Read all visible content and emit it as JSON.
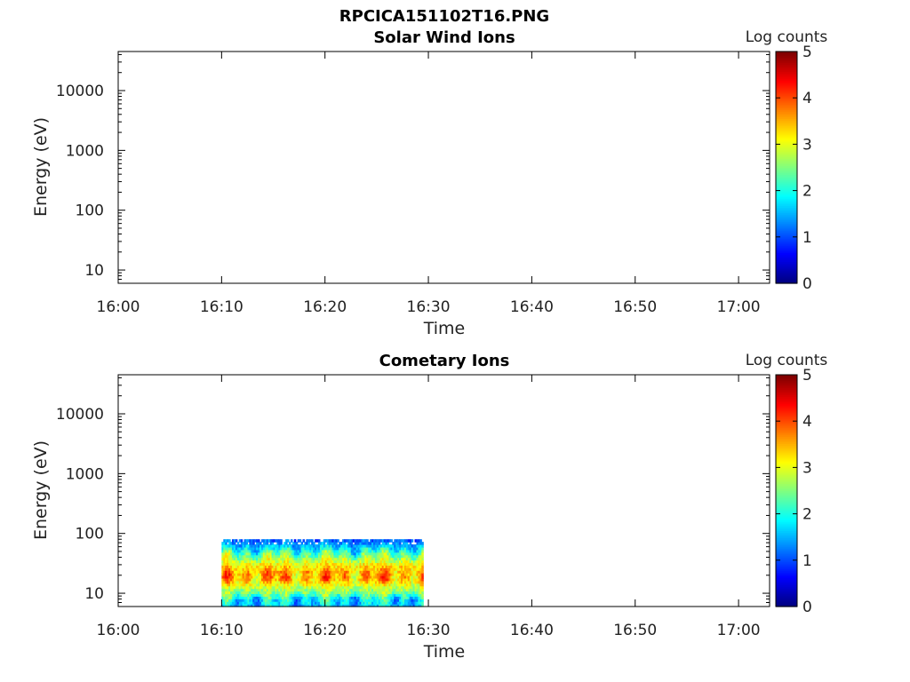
{
  "figure": {
    "title": "RPCICA151102T16.PNG"
  },
  "chart_data": [
    {
      "type": "heatmap",
      "title": "Solar Wind Ions",
      "xlabel": "Time",
      "ylabel": "Energy (eV)",
      "x_ticks": [
        "16:00",
        "16:10",
        "16:20",
        "16:30",
        "16:40",
        "16:50",
        "17:00"
      ],
      "xlim": [
        "16:00",
        "17:03"
      ],
      "y_scale": "log",
      "y_ticks": [
        10,
        100,
        1000,
        10000
      ],
      "ylim": [
        6,
        45000
      ],
      "colorbar": {
        "label": "Log counts",
        "ticks": [
          0,
          1,
          2,
          3,
          4,
          5
        ],
        "range": [
          0,
          5
        ],
        "colormap": "jet"
      },
      "data_blocks": []
    },
    {
      "type": "heatmap",
      "title": "Cometary Ions",
      "xlabel": "Time",
      "ylabel": "Energy (eV)",
      "x_ticks": [
        "16:00",
        "16:10",
        "16:20",
        "16:30",
        "16:40",
        "16:50",
        "17:00"
      ],
      "xlim": [
        "16:00",
        "17:03"
      ],
      "y_scale": "log",
      "y_ticks": [
        10,
        100,
        1000,
        10000
      ],
      "ylim": [
        6,
        45000
      ],
      "colorbar": {
        "label": "Log counts",
        "ticks": [
          0,
          1,
          2,
          3,
          4,
          5
        ],
        "range": [
          0,
          5
        ],
        "colormap": "jet"
      },
      "data_blocks": [
        {
          "time_start": "16:10",
          "time_end": "16:29:30",
          "energy_min": 6,
          "energy_max": 80,
          "energy_profile": [
            {
              "energy": 6,
              "log_counts": 1.6
            },
            {
              "energy": 8,
              "log_counts": 1.8
            },
            {
              "energy": 10,
              "log_counts": 2.4
            },
            {
              "energy": 13,
              "log_counts": 2.9
            },
            {
              "energy": 17,
              "log_counts": 3.5
            },
            {
              "energy": 22,
              "log_counts": 3.6
            },
            {
              "energy": 30,
              "log_counts": 3.2
            },
            {
              "energy": 40,
              "log_counts": 2.6
            },
            {
              "energy": 55,
              "log_counts": 1.9
            },
            {
              "energy": 75,
              "log_counts": 1.1
            }
          ]
        }
      ]
    }
  ]
}
